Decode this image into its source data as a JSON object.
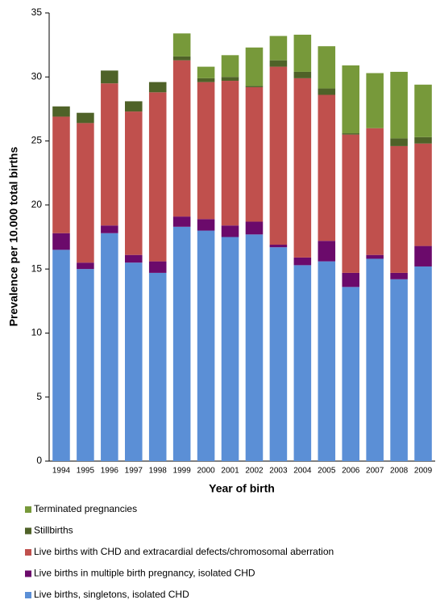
{
  "chart_data": {
    "type": "stacked_bar",
    "x_label": "Year of birth",
    "y_label": "Prevalence per 10.000 total births",
    "categories": [
      "1994",
      "1995",
      "1996",
      "1997",
      "1998",
      "1999",
      "2000",
      "2001",
      "2002",
      "2003",
      "2004",
      "2005",
      "2006",
      "2007",
      "2008",
      "2009"
    ],
    "series": [
      {
        "name": "Live births, singletons, isolated CHD",
        "color": "#5b8fd6",
        "values": [
          16.5,
          15.0,
          17.8,
          15.5,
          14.7,
          18.3,
          18.0,
          17.5,
          17.7,
          16.7,
          15.3,
          15.6,
          13.6,
          15.8,
          14.2,
          15.2
        ]
      },
      {
        "name": "Live births in multiple birth pregnancy, isolated CHD",
        "color": "#6b0a6b",
        "values": [
          1.3,
          0.5,
          0.6,
          0.6,
          0.9,
          0.8,
          0.9,
          0.9,
          1.0,
          0.2,
          0.6,
          1.6,
          1.1,
          0.3,
          0.5,
          1.6
        ]
      },
      {
        "name": "Live births with CHD and extracardial defects/chromosomal aberration",
        "color": "#c0504d",
        "values": [
          9.1,
          10.9,
          11.1,
          11.2,
          13.2,
          12.2,
          10.7,
          11.3,
          10.5,
          13.9,
          14.0,
          11.4,
          10.8,
          9.9,
          9.9,
          8.0
        ]
      },
      {
        "name": "Stillbirths",
        "color": "#4f6228",
        "values": [
          0.8,
          0.8,
          1.0,
          0.8,
          0.8,
          0.3,
          0.3,
          0.3,
          0.1,
          0.5,
          0.5,
          0.5,
          0.1,
          0,
          0.6,
          0.5
        ]
      },
      {
        "name": "Terminated pregnancies",
        "color": "#77993a",
        "values": [
          0,
          0,
          0,
          0,
          0,
          1.8,
          0.9,
          1.7,
          3.0,
          1.9,
          2.9,
          3.3,
          5.3,
          4.3,
          5.2,
          4.1
        ]
      }
    ],
    "ylim": [
      0,
      35
    ],
    "yticks": [
      0,
      5,
      10,
      15,
      20,
      25,
      30,
      35
    ],
    "grid": false
  }
}
